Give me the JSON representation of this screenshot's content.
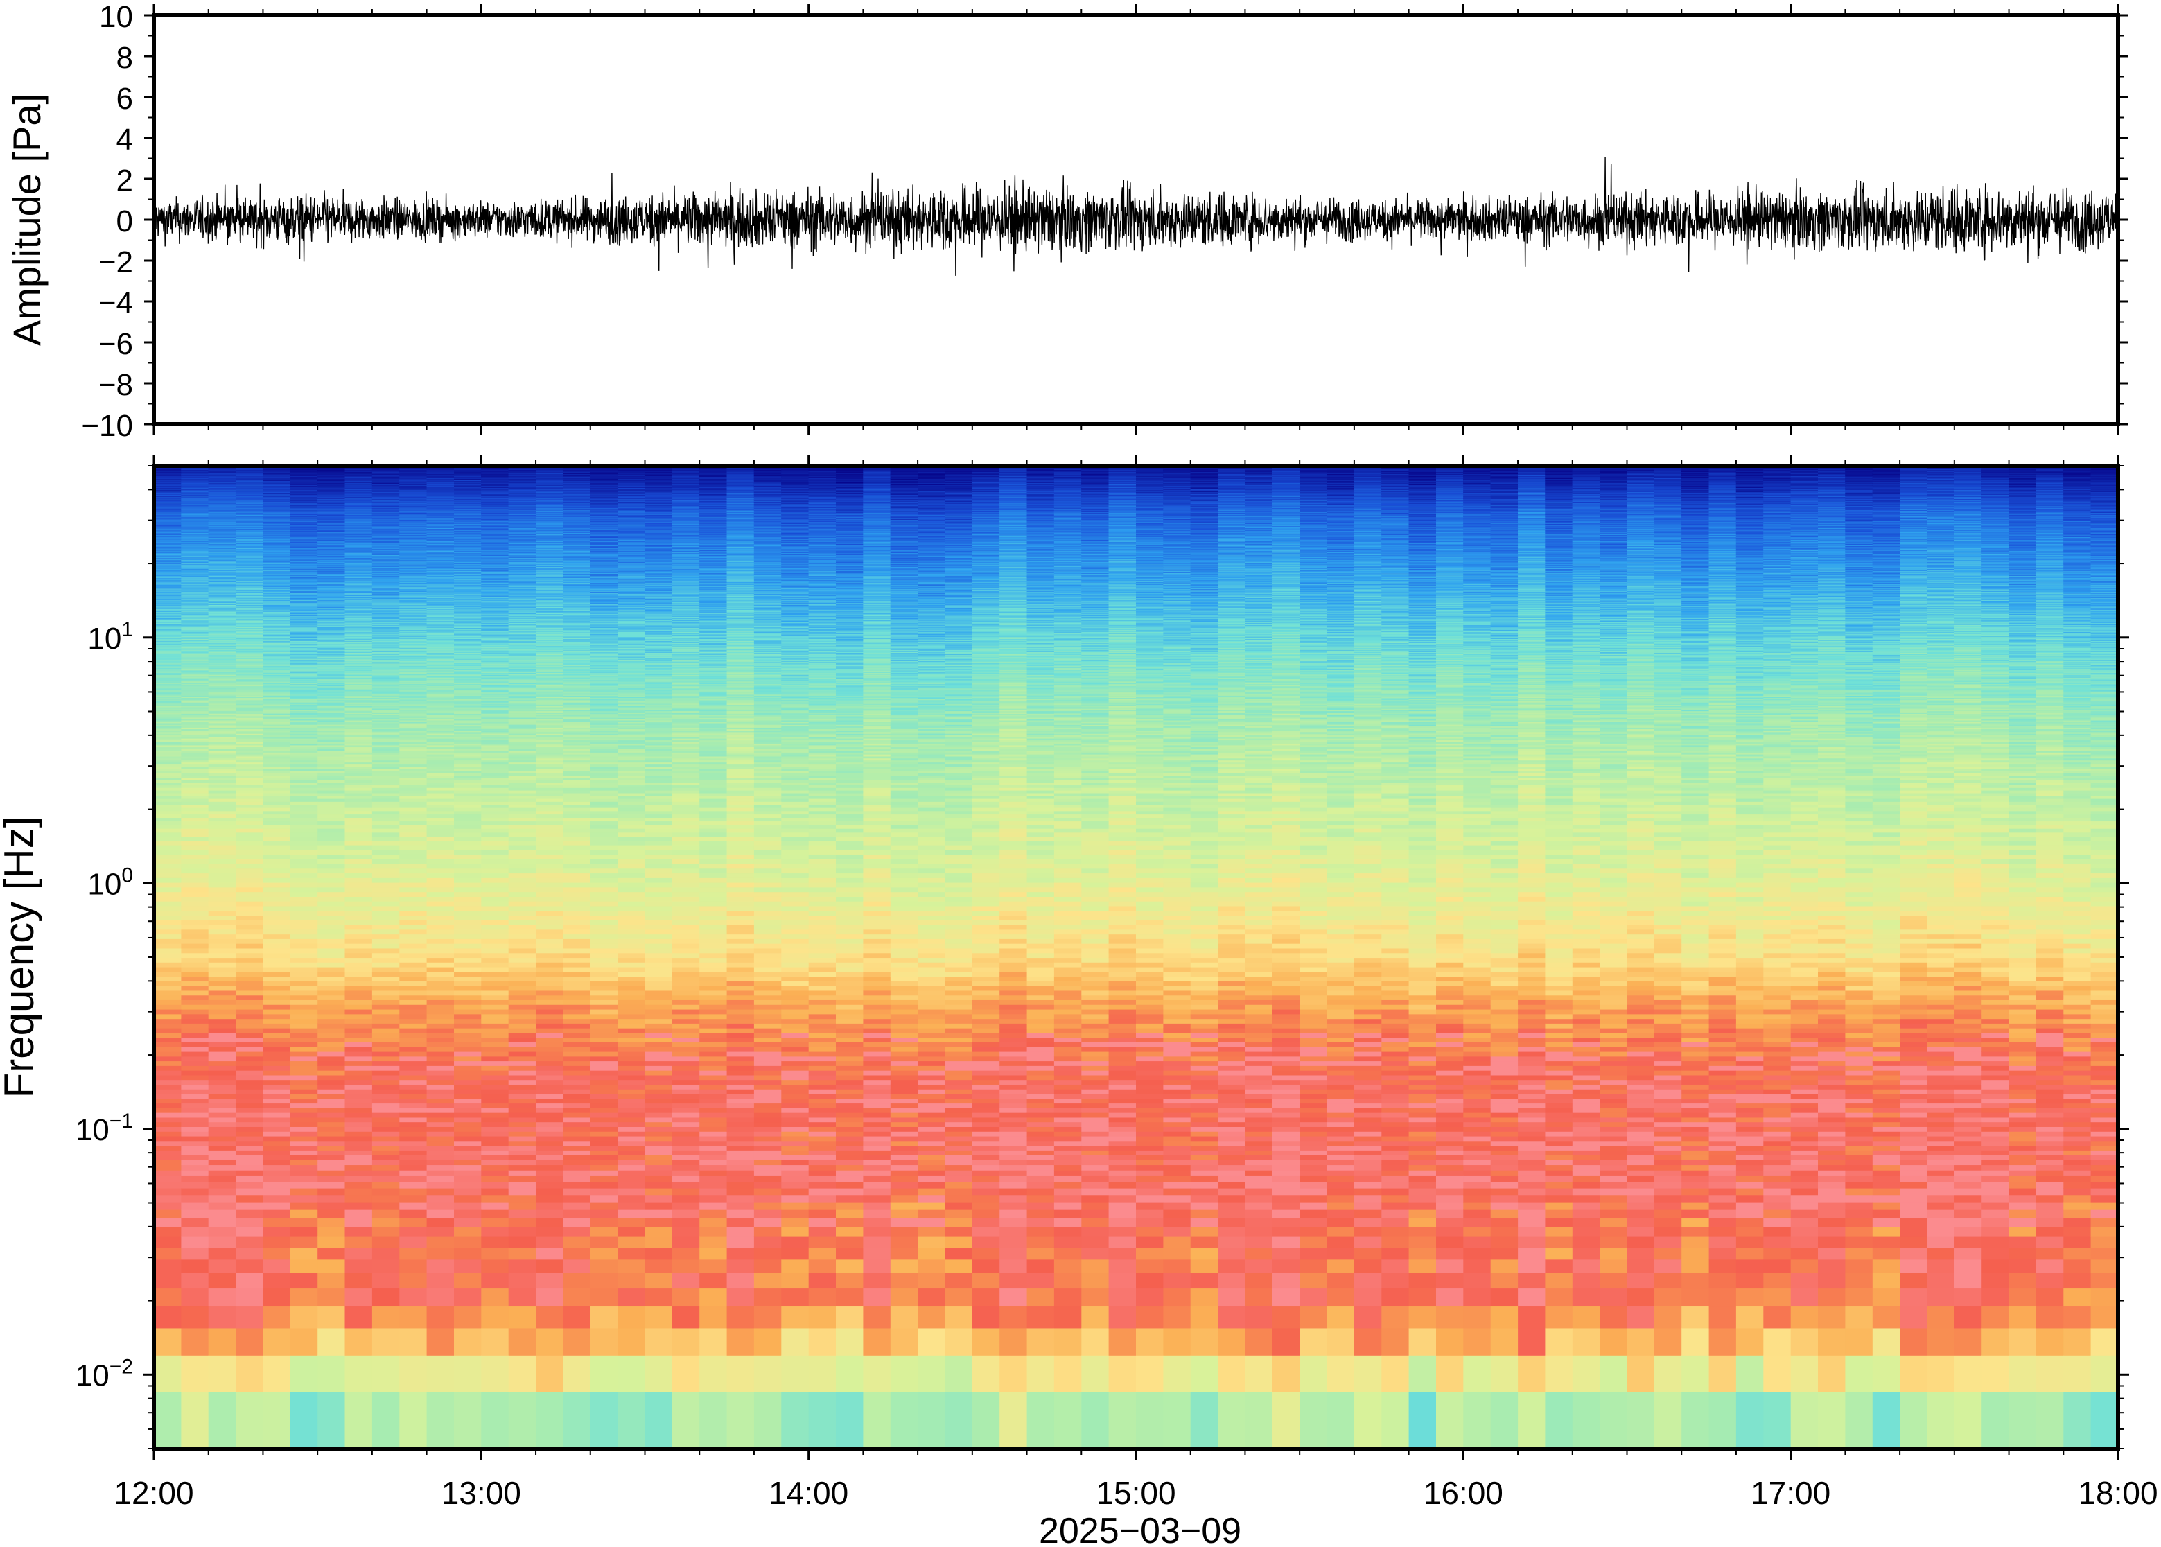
{
  "chart_data": [
    {
      "type": "line",
      "ylabel": "Amplitude [Pa]",
      "ylim": [
        -10,
        10
      ],
      "yticks": [
        "10",
        "8",
        "6",
        "4",
        "2",
        "0",
        "−2",
        "−4",
        "−6",
        "−8",
        "−10"
      ],
      "ytick_values": [
        10,
        8,
        6,
        4,
        2,
        0,
        -2,
        -4,
        -6,
        -8,
        -10
      ],
      "xlim": [
        "12:00",
        "18:00"
      ],
      "grid": false,
      "series": [
        {
          "color": "#000000",
          "envelope": {
            "time_hours": [
              12.0,
              12.25,
              12.5,
              12.75,
              13.0,
              13.25,
              13.5,
              13.75,
              14.0,
              14.25,
              14.5,
              14.75,
              15.0,
              15.25,
              15.5,
              15.75,
              16.0,
              16.25,
              16.5,
              16.75,
              17.0,
              17.25,
              17.5,
              17.75,
              18.0
            ],
            "typical_abs_amplitude_pa": [
              0.9,
              1.0,
              1.1,
              0.9,
              0.8,
              0.9,
              1.1,
              1.2,
              1.3,
              1.3,
              1.5,
              1.4,
              1.3,
              1.2,
              1.0,
              0.9,
              0.9,
              1.1,
              1.2,
              1.2,
              1.3,
              1.3,
              1.5,
              1.4,
              1.3
            ],
            "peak_abs_amplitude_pa": [
              1.8,
              2.0,
              2.2,
              1.8,
              1.7,
              2.0,
              3.3,
              2.3,
              2.6,
              2.5,
              3.2,
              2.8,
              2.5,
              2.3,
              2.0,
              1.8,
              1.9,
              2.6,
              3.6,
              2.6,
              2.6,
              2.7,
              3.4,
              2.8,
              2.6
            ]
          }
        }
      ]
    },
    {
      "type": "heatmap",
      "ylabel": "Frequency [Hz]",
      "yscale": "log",
      "ylim": [
        0.005,
        50
      ],
      "yticks": [
        {
          "value": 0.01,
          "base": "10",
          "exp": "−2"
        },
        {
          "value": 0.1,
          "base": "10",
          "exp": "−1"
        },
        {
          "value": 1,
          "base": "10",
          "exp": "0"
        },
        {
          "value": 10,
          "base": "10",
          "exp": "1"
        }
      ],
      "xlabel": "2025−03−09",
      "xticks": [
        "12:00",
        "13:00",
        "14:00",
        "15:00",
        "16:00",
        "17:00",
        "18:00"
      ],
      "xlim": [
        "12:00",
        "18:00"
      ],
      "colormap": [
        "#08088c",
        "#1a4fd8",
        "#2fa3f0",
        "#6fe0d8",
        "#a8ecb0",
        "#d8f29a",
        "#fde38a",
        "#fbb055",
        "#f5604f",
        "#fb8b8e"
      ],
      "level_by_log10_frequency": {
        "log10_hz": [
          -2.3,
          -2.1,
          -1.9,
          -1.7,
          -1.5,
          -1.2,
          -0.8,
          -0.5,
          -0.3,
          0.0,
          0.3,
          0.6,
          0.9,
          1.2,
          1.5,
          1.7
        ],
        "level": [
          3.6,
          4.6,
          6.6,
          8.0,
          8.0,
          8.3,
          8.1,
          7.2,
          6.1,
          5.3,
          4.7,
          4.1,
          3.2,
          2.2,
          1.3,
          0.2
        ]
      }
    }
  ]
}
